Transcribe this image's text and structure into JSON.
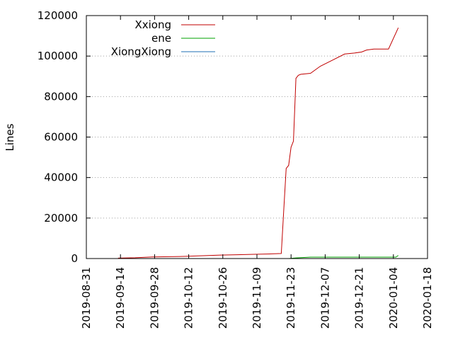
{
  "chart_data": {
    "type": "line",
    "ylabel": "Lines",
    "xlim": [
      "2019-08-31",
      "2020-01-18"
    ],
    "ylim": [
      0,
      120000
    ],
    "grid": "horizontal dotted",
    "legend_position": "top-left",
    "x_ticks": [
      "2019-08-31",
      "2019-09-14",
      "2019-09-28",
      "2019-10-12",
      "2019-10-26",
      "2019-11-09",
      "2019-11-23",
      "2019-12-07",
      "2019-12-21",
      "2020-01-04",
      "2020-01-18"
    ],
    "y_ticks": [
      0,
      20000,
      40000,
      60000,
      80000,
      100000,
      120000
    ],
    "y_tick_labels": [
      "0",
      "20000",
      "40000",
      "60000",
      "80000",
      "100000",
      "120000"
    ],
    "series": [
      {
        "name": "Xxiong",
        "color": "#c00000",
        "x": [
          "2019-09-13",
          "2019-09-20",
          "2019-09-27",
          "2019-10-04",
          "2019-10-11",
          "2019-10-18",
          "2019-10-25",
          "2019-11-01",
          "2019-11-08",
          "2019-11-15",
          "2019-11-19",
          "2019-11-20",
          "2019-11-21",
          "2019-11-22",
          "2019-11-23",
          "2019-11-24",
          "2019-11-25",
          "2019-11-26",
          "2019-11-27",
          "2019-12-01",
          "2019-12-05",
          "2019-12-10",
          "2019-12-15",
          "2019-12-19",
          "2019-12-22",
          "2019-12-24",
          "2019-12-27",
          "2020-01-02",
          "2020-01-06"
        ],
        "y": [
          200,
          400,
          800,
          900,
          1100,
          1400,
          1700,
          1900,
          2100,
          2300,
          2500,
          24000,
          44500,
          46000,
          55000,
          58000,
          89000,
          90500,
          91000,
          91500,
          95000,
          98000,
          101000,
          101500,
          102000,
          103000,
          103500,
          103500,
          114000
        ]
      },
      {
        "name": "ene",
        "color": "#00a000",
        "x": [
          "2019-11-22",
          "2019-11-25",
          "2019-12-01",
          "2019-12-15",
          "2020-01-01",
          "2020-01-05",
          "2020-01-06"
        ],
        "y": [
          0,
          300,
          700,
          700,
          700,
          700,
          1500
        ]
      },
      {
        "name": "XiongXiong",
        "color": "#1f6fb5",
        "x": [
          "2019-11-22",
          "2020-01-06"
        ],
        "y": [
          0,
          0
        ]
      }
    ]
  }
}
